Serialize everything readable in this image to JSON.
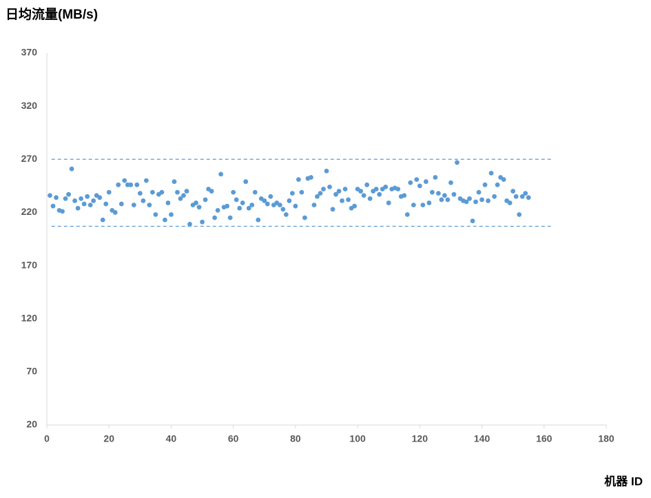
{
  "chart_data": {
    "type": "scatter",
    "title": "日均流量(MB/s)",
    "x_label": "机器 ID",
    "series": [
      {
        "color": "#5b9bd5",
        "x": [
          1,
          2,
          3,
          4,
          5,
          6,
          7,
          8,
          9,
          10,
          11,
          12,
          13,
          14,
          15,
          16,
          17,
          18,
          19,
          20,
          21,
          22,
          23,
          24,
          25,
          26,
          27,
          28,
          29,
          30,
          31,
          32,
          33,
          34,
          35,
          36,
          37,
          38,
          39,
          40,
          41,
          42,
          43,
          44,
          45,
          46,
          47,
          48,
          49,
          50,
          51,
          52,
          53,
          54,
          55,
          56,
          57,
          58,
          59,
          60,
          61,
          62,
          63,
          64,
          65,
          66,
          67,
          68,
          69,
          70,
          71,
          72,
          73,
          74,
          75,
          76,
          77,
          78,
          79,
          80,
          81,
          82,
          83,
          84,
          85,
          86,
          87,
          88,
          89,
          90,
          91,
          92,
          93,
          94,
          95,
          96,
          97,
          98,
          99,
          100,
          101,
          102,
          103,
          104,
          105,
          106,
          107,
          108,
          109,
          110,
          111,
          112,
          113,
          114,
          115,
          116,
          117,
          118,
          119,
          120,
          121,
          122,
          123,
          124,
          125,
          126,
          127,
          128,
          129,
          130,
          131,
          132,
          133,
          134,
          135,
          136,
          137,
          138,
          139,
          140,
          141,
          142,
          143,
          144,
          145,
          146,
          147,
          148,
          149,
          150,
          151,
          152,
          153,
          154,
          155
        ],
        "values": [
          236,
          226,
          234,
          222,
          221,
          233,
          237,
          261,
          231,
          224,
          233,
          228,
          235,
          227,
          231,
          236,
          234,
          213,
          228,
          239,
          222,
          220,
          246,
          228,
          250,
          246,
          246,
          227,
          246,
          238,
          231,
          250,
          227,
          239,
          218,
          237,
          239,
          213,
          229,
          218,
          249,
          239,
          233,
          236,
          240,
          209,
          227,
          229,
          225,
          211,
          232,
          242,
          240,
          215,
          222,
          256,
          225,
          226,
          215,
          239,
          232,
          224,
          229,
          249,
          224,
          227,
          239,
          213,
          233,
          231,
          228,
          235,
          227,
          229,
          227,
          223,
          218,
          231,
          238,
          226,
          251,
          239,
          215,
          252,
          253,
          227,
          235,
          238,
          242,
          259,
          244,
          223,
          237,
          240,
          231,
          242,
          232,
          224,
          226,
          242,
          240,
          236,
          246,
          233,
          240,
          242,
          237,
          242,
          244,
          229,
          242,
          243,
          242,
          235,
          236,
          218,
          248,
          227,
          251,
          245,
          227,
          249,
          229,
          239,
          253,
          238,
          232,
          236,
          232,
          248,
          237,
          267,
          233,
          231,
          230,
          233,
          212,
          230,
          239,
          232,
          246,
          231,
          257,
          235,
          246,
          253,
          251,
          231,
          229,
          240,
          235,
          218,
          235,
          238,
          234
        ]
      }
    ],
    "reference_lines": [
      270,
      207
    ],
    "reference_xlim": [
      1.5,
      163
    ],
    "xlim": [
      0,
      180
    ],
    "xticks": [
      0,
      20,
      40,
      60,
      80,
      100,
      120,
      140,
      160,
      180
    ],
    "ylim": [
      20,
      370
    ],
    "yticks": [
      20,
      70,
      120,
      170,
      220,
      270,
      320,
      370
    ],
    "grid": false
  }
}
